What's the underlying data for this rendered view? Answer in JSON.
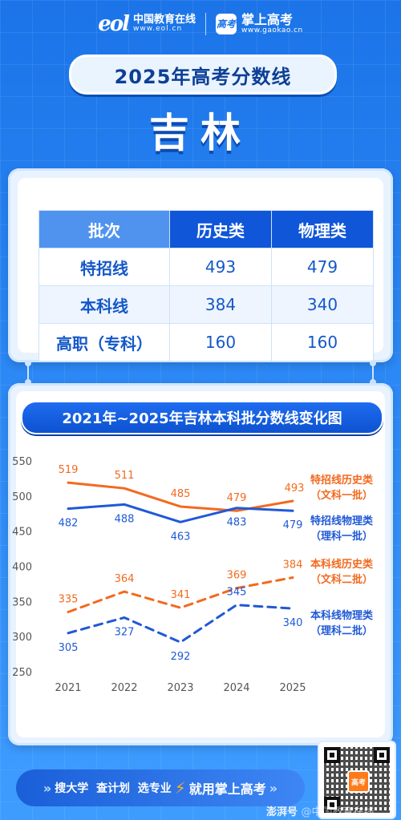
{
  "header": {
    "eol_mark": "eol",
    "eol_name": "中国教育在线",
    "eol_url": "www.eol.cn",
    "gk_badge": "高考",
    "gk_name": "掌上高考",
    "gk_url": "www.gaokao.cn"
  },
  "title": "2025年高考分数线",
  "province": "吉林",
  "table": {
    "headers": [
      "批次",
      "历史类",
      "物理类"
    ],
    "rows": [
      {
        "batch": "特招线",
        "history": "493",
        "physics": "479"
      },
      {
        "batch": "本科线",
        "history": "384",
        "physics": "340"
      },
      {
        "batch": "高职（专科）",
        "history": "160",
        "physics": "160"
      }
    ]
  },
  "chart_title": "2021年~2025年吉林本科批分数线变化图",
  "chart_data": {
    "type": "line",
    "x": [
      "2021",
      "2022",
      "2023",
      "2024",
      "2025"
    ],
    "ylim": [
      250,
      550
    ],
    "yticks": [
      "550",
      "500",
      "450",
      "400",
      "350",
      "300",
      "250"
    ],
    "series": [
      {
        "name": "特招线历史类",
        "sub": "（文科一批）",
        "values": [
          519,
          511,
          485,
          479,
          493
        ],
        "color": "#f26a1f",
        "dashed": false
      },
      {
        "name": "特招线物理类",
        "sub": "（理科一批）",
        "values": [
          482,
          488,
          463,
          483,
          479
        ],
        "color": "#2059d6",
        "dashed": false
      },
      {
        "name": "本科线历史类",
        "sub": "（文科二批）",
        "values": [
          335,
          364,
          341,
          369,
          384
        ],
        "color": "#f26a1f",
        "dashed": true
      },
      {
        "name": "本科线物理类",
        "sub": "（理科二批）",
        "values": [
          305,
          327,
          292,
          345,
          340
        ],
        "color": "#2059d6",
        "dashed": true
      }
    ]
  },
  "footer": {
    "arrow_left": "»",
    "items": "搜大学  查计划  选专业",
    "bolt": "⚡",
    "cta": "就用掌上高考",
    "arrow_right": "»",
    "qr_center": "高考"
  },
  "watermark": {
    "brand": "澎湃号",
    "handle": "@中国教育在线"
  }
}
